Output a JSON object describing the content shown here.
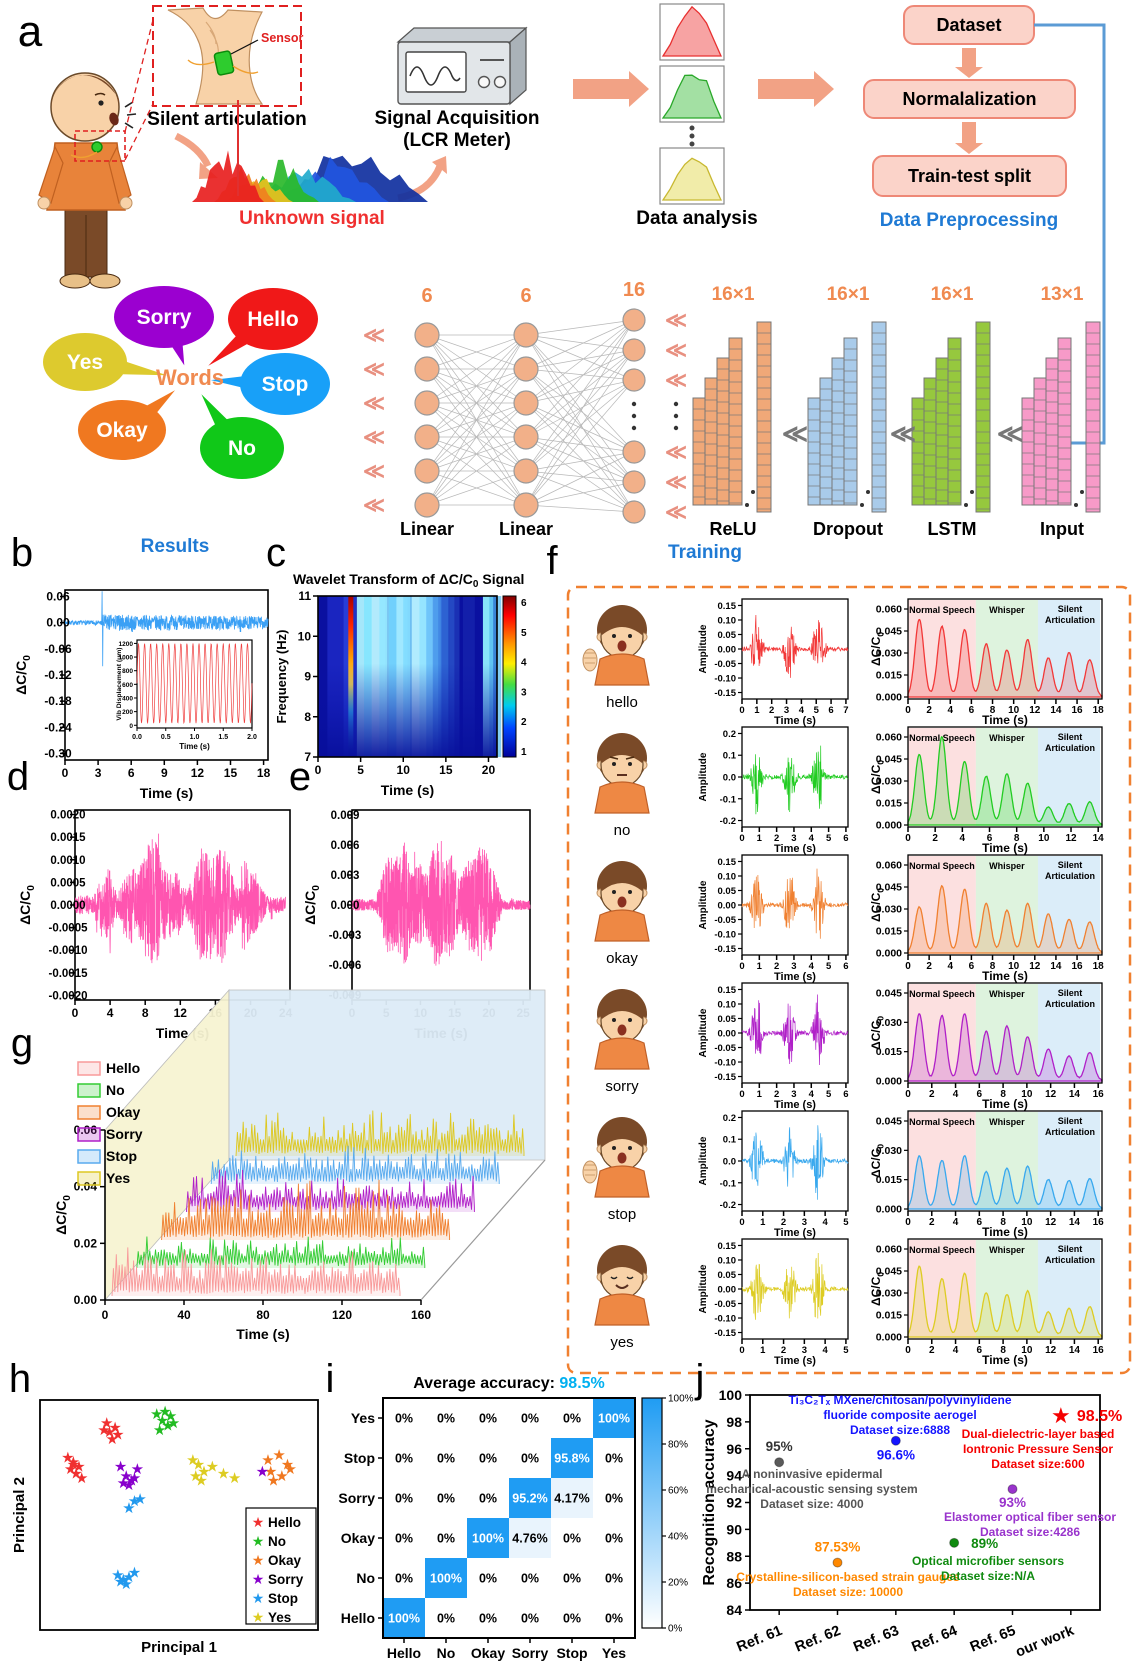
{
  "panel_labels": {
    "a": "a",
    "b": "b",
    "c": "c",
    "d": "d",
    "e": "e",
    "f": "f",
    "g": "g",
    "h": "h",
    "i": "i",
    "j": "j"
  },
  "panel_a": {
    "silent_articulation": "Silent articulation",
    "sensor_label": "Sensor",
    "unknown_signal": "Unknown signal",
    "signal_acquisition": [
      "Signal Acquisition",
      "(LCR Meter)"
    ],
    "data_analysis": "Data analysis",
    "flow_boxes": [
      "Dataset",
      "Normalalization",
      "Train-test split"
    ],
    "data_preprocessing": "Data Preprocessing",
    "results_label": "Results",
    "training_label": "Training",
    "words_center": "Words",
    "word_bubbles": [
      {
        "label": "Sorry",
        "color": "#9b00d0"
      },
      {
        "label": "Hello",
        "color": "#f01818"
      },
      {
        "label": "Yes",
        "color": "#ddca2e"
      },
      {
        "label": "Stop",
        "color": "#18a0f8"
      },
      {
        "label": "Okay",
        "color": "#f07820"
      },
      {
        "label": "No",
        "color": "#10c818"
      }
    ],
    "network": {
      "layer_size_labels": [
        "6",
        "6",
        "16"
      ],
      "stack_size_labels": [
        "16×1",
        "16×1",
        "16×1",
        "13×1"
      ],
      "block_labels": [
        "Linear",
        "Linear",
        "ReLU",
        "Dropout",
        "LSTM",
        "Input"
      ],
      "stack_colors": [
        "#f0a878",
        "#a9cbea",
        "#96c83e",
        "#f79ac8"
      ]
    }
  },
  "chart_data": {
    "b": {
      "type": "line",
      "color": "#3aa0f5",
      "ylabel": "ΔC/C0",
      "yticks": [
        "0.06",
        "0.00",
        "-0.06",
        "-0.12",
        "-0.18",
        "-0.24",
        "-0.30"
      ],
      "xlabel": "Time (s)",
      "xticks": [
        0,
        3,
        6,
        9,
        12,
        15,
        18
      ],
      "description": "noisy capacitance signal near zero with burst after t=3.3s",
      "inset": {
        "ylabel": "Vib Displacement (μm)",
        "yticks": [
          1200,
          1000,
          800,
          600,
          400,
          200,
          0
        ],
        "xlabel": "Time (s)",
        "xticks": [
          "0.0",
          "0.5",
          "1.0",
          "1.5",
          "2.0"
        ],
        "color": "#f04040",
        "cycles": 19
      }
    },
    "c": {
      "type": "heatmap",
      "title_prefix": "Wavelet Transform of ΔC/C",
      "title_sub": "0",
      "title_suffix": " Signal",
      "ylabel": "Frequency (Hz)",
      "yticks": [
        11,
        10,
        9,
        8,
        7
      ],
      "xlabel": "Time (s)",
      "xticks": [
        0,
        5,
        10,
        15,
        20
      ],
      "colorbar_ticks": [
        6,
        5,
        4,
        3,
        2,
        1
      ],
      "description": "dark blue background, hot red streak near t=4s, bright cyan streaks t=4-13 and t=19.5, energy concentrated 8.5-11 Hz"
    },
    "d": {
      "type": "line",
      "color": "#ff55b0",
      "ylabel": "ΔC/C0",
      "yticks": [
        "0.0020",
        "0.0015",
        "0.0010",
        "0.0005",
        "0.0000",
        "-0.0005",
        "-0.0010",
        "-0.0015",
        "-0.0020"
      ],
      "xlabel": "Time (s)",
      "xticks": [
        0,
        4,
        8,
        12,
        16,
        20,
        24
      ]
    },
    "e": {
      "type": "line",
      "color": "#ff55b0",
      "ylabel": "ΔC/C0",
      "yticks": [
        "0.009",
        "0.006",
        "0.003",
        "0.000",
        "-0.003",
        "-0.006",
        "-0.009"
      ],
      "xlabel": "Time (s)",
      "xticks": [
        0,
        5,
        10,
        15,
        20,
        25
      ]
    },
    "f_region_labels": [
      "Normal Speech",
      "Whisper",
      "Silent Articulation"
    ],
    "f_region_colors": [
      "#fbd8d8",
      "#d6f0d6",
      "#d2e8f8"
    ],
    "f_rows": [
      {
        "word": "hello",
        "color": "#f23838",
        "amp": {
          "ylabel": "Amplitude",
          "ymax": 0.15,
          "yticks": [
            "0.15",
            "0.10",
            "0.05",
            "0.00",
            "-0.05",
            "-0.10",
            "-0.15"
          ],
          "xlabel": "Time (s)",
          "xticks": [
            0,
            1,
            2,
            3,
            4,
            5,
            6,
            7
          ]
        },
        "cc": {
          "ylabel": "ΔC/C0",
          "ymax": 0.06,
          "yticks": [
            "0.060",
            "0.045",
            "0.030",
            "0.015",
            "0.000"
          ],
          "xlabel": "Time (s)",
          "xticks": [
            0,
            2,
            4,
            6,
            8,
            10,
            12,
            14,
            16,
            18
          ],
          "peak_heights": [
            [
              0.88,
              0.8,
              0.76
            ],
            [
              0.6,
              0.53,
              0.65
            ],
            [
              0.44,
              0.5,
              0.42
            ]
          ]
        }
      },
      {
        "word": "no",
        "color": "#22cc22",
        "amp": {
          "ylabel": "Amplitude",
          "ymax": 0.2,
          "yticks": [
            "0.2",
            "0.1",
            "0.0",
            "-0.1",
            "-0.2"
          ],
          "xlabel": "Time (s)",
          "xticks": [
            0,
            1,
            2,
            3,
            4,
            5,
            6
          ]
        },
        "cc": {
          "ylabel": "ΔC/C0",
          "ymax": 0.06,
          "yticks": [
            "0.060",
            "0.045",
            "0.030",
            "0.015",
            "0.000"
          ],
          "xlabel": "Time (s)",
          "xticks": [
            0,
            2,
            4,
            6,
            8,
            10,
            12,
            14
          ],
          "peak_heights": [
            [
              0.8,
              1.0,
              0.72
            ],
            [
              0.55,
              0.58,
              0.47
            ],
            [
              0.2,
              0.24,
              0.26
            ]
          ]
        }
      },
      {
        "word": "okay",
        "color": "#f08030",
        "amp": {
          "ylabel": "Amplitude",
          "ymax": 0.15,
          "yticks": [
            "0.15",
            "0.10",
            "0.05",
            "0.00",
            "-0.05",
            "-0.10",
            "-0.15"
          ],
          "xlabel": "Time (s)",
          "xticks": [
            0,
            1,
            2,
            3,
            4,
            5,
            6
          ]
        },
        "cc": {
          "ylabel": "ΔC/C0",
          "ymax": 0.06,
          "yticks": [
            "0.060",
            "0.045",
            "0.030",
            "0.015",
            "0.000"
          ],
          "xlabel": "Time (s)",
          "xticks": [
            0,
            2,
            4,
            6,
            8,
            10,
            12,
            14,
            16,
            18
          ],
          "peak_heights": [
            [
              0.52,
              0.76,
              0.72
            ],
            [
              0.56,
              0.48,
              0.56
            ],
            [
              0.44,
              0.38,
              0.35
            ]
          ]
        }
      },
      {
        "word": "sorry",
        "color": "#b020c8",
        "amp": {
          "ylabel": "Amplitude",
          "ymax": 0.15,
          "yticks": [
            "0.15",
            "0.10",
            "0.05",
            "0.00",
            "-0.05",
            "-0.10",
            "-0.15"
          ],
          "xlabel": "Time (s)",
          "xticks": [
            0,
            1,
            2,
            3,
            4,
            5,
            6
          ]
        },
        "cc": {
          "ylabel": "ΔC/C0",
          "ymax": 0.045,
          "yticks": [
            "0.045",
            "0.030",
            "0.015",
            "0.000"
          ],
          "xlabel": "Time (s)",
          "xticks": [
            0,
            2,
            4,
            6,
            8,
            10,
            12,
            14,
            16
          ],
          "peak_heights": [
            [
              0.76,
              0.74,
              0.76
            ],
            [
              0.56,
              0.62,
              0.5
            ],
            [
              0.36,
              0.28,
              0.32
            ]
          ]
        }
      },
      {
        "word": "stop",
        "color": "#38a8ee",
        "amp": {
          "ylabel": "Amplitude",
          "ymax": 0.2,
          "yticks": [
            "0.2",
            "0.1",
            "0.0",
            "-0.1",
            "-0.2"
          ],
          "xlabel": "Time (s)",
          "xticks": [
            0,
            1,
            2,
            3,
            4,
            5
          ]
        },
        "cc": {
          "ylabel": "ΔC/C0",
          "ymax": 0.045,
          "yticks": [
            "0.045",
            "0.030",
            "0.015",
            "0.000"
          ],
          "xlabel": "Time (s)",
          "xticks": [
            0,
            2,
            4,
            6,
            8,
            10,
            12,
            14,
            16
          ],
          "peak_heights": [
            [
              0.6,
              0.55,
              0.6
            ],
            [
              0.42,
              0.46,
              0.48
            ],
            [
              0.33,
              0.32,
              0.34
            ]
          ]
        }
      },
      {
        "word": "yes",
        "color": "#ddcc22",
        "amp": {
          "ylabel": "Amplitude",
          "ymax": 0.15,
          "yticks": [
            "0.15",
            "0.10",
            "0.05",
            "0.00",
            "-0.05",
            "-0.10",
            "-0.15"
          ],
          "xlabel": "Time (s)",
          "xticks": [
            0,
            1,
            2,
            3,
            4,
            5
          ]
        },
        "cc": {
          "ylabel": "ΔC/C0",
          "ymax": 0.06,
          "yticks": [
            "0.060",
            "0.045",
            "0.030",
            "0.015",
            "0.000"
          ],
          "xlabel": "Time (s)",
          "xticks": [
            0,
            2,
            4,
            6,
            8,
            10,
            12,
            14,
            16
          ],
          "peak_heights": [
            [
              0.8,
              0.66,
              0.72
            ],
            [
              0.5,
              0.48,
              0.52
            ],
            [
              0.28,
              0.32,
              0.34
            ]
          ]
        }
      }
    ],
    "g": {
      "type": "line",
      "ylabel": "ΔC/C0",
      "yticks": [
        "0.06",
        "0.04",
        "0.02",
        "0.00"
      ],
      "xlabel": "Time (s)",
      "xticks": [
        0,
        40,
        80,
        120,
        160
      ],
      "series": [
        {
          "name": "Hello",
          "color": "#f89a9a"
        },
        {
          "name": "No",
          "color": "#33cc33"
        },
        {
          "name": "Okay",
          "color": "#f08030"
        },
        {
          "name": "Sorry",
          "color": "#b020c8"
        },
        {
          "name": "Stop",
          "color": "#58aaee"
        },
        {
          "name": "Yes",
          "color": "#ddc822"
        }
      ]
    },
    "h": {
      "type": "scatter",
      "xlabel": "Principal 1",
      "ylabel": "Principal 2",
      "classes": [
        {
          "name": "Hello",
          "color": "#f03030",
          "points": [
            [
              0.24,
              0.1
            ],
            [
              0.27,
              0.12
            ],
            [
              0.25,
              0.14
            ],
            [
              0.28,
              0.15
            ],
            [
              0.26,
              0.17
            ],
            [
              0.23,
              0.13
            ],
            [
              0.1,
              0.25
            ],
            [
              0.12,
              0.27
            ],
            [
              0.14,
              0.29
            ],
            [
              0.11,
              0.3
            ],
            [
              0.13,
              0.32
            ],
            [
              0.12,
              0.28
            ],
            [
              0.15,
              0.34
            ]
          ]
        },
        {
          "name": "No",
          "color": "#22bb22",
          "points": [
            [
              0.42,
              0.06
            ],
            [
              0.45,
              0.05
            ],
            [
              0.47,
              0.07
            ],
            [
              0.44,
              0.09
            ],
            [
              0.46,
              0.11
            ],
            [
              0.43,
              0.13
            ],
            [
              0.48,
              0.1
            ]
          ]
        },
        {
          "name": "Okay",
          "color": "#f07820",
          "points": [
            [
              0.82,
              0.26
            ],
            [
              0.86,
              0.24
            ],
            [
              0.89,
              0.28
            ],
            [
              0.83,
              0.31
            ],
            [
              0.87,
              0.33
            ],
            [
              0.9,
              0.3
            ],
            [
              0.84,
              0.35
            ]
          ]
        },
        {
          "name": "Sorry",
          "color": "#8800cc",
          "points": [
            [
              0.29,
              0.29
            ],
            [
              0.35,
              0.3
            ],
            [
              0.31,
              0.33
            ],
            [
              0.33,
              0.35
            ],
            [
              0.34,
              0.34
            ],
            [
              0.3,
              0.36
            ],
            [
              0.32,
              0.37
            ],
            [
              0.8,
              0.31
            ]
          ]
        },
        {
          "name": "Stop",
          "color": "#2299ee",
          "points": [
            [
              0.34,
              0.44
            ],
            [
              0.32,
              0.47
            ],
            [
              0.36,
              0.43
            ],
            [
              0.28,
              0.76
            ],
            [
              0.3,
              0.78
            ],
            [
              0.32,
              0.77
            ],
            [
              0.34,
              0.75
            ],
            [
              0.31,
              0.8
            ],
            [
              0.29,
              0.79
            ]
          ]
        },
        {
          "name": "Yes",
          "color": "#ddcc22",
          "points": [
            [
              0.55,
              0.26
            ],
            [
              0.57,
              0.28
            ],
            [
              0.59,
              0.31
            ],
            [
              0.56,
              0.33
            ],
            [
              0.62,
              0.29
            ],
            [
              0.66,
              0.32
            ],
            [
              0.7,
              0.34
            ],
            [
              0.58,
              0.35
            ]
          ]
        }
      ]
    },
    "i": {
      "type": "heatmap",
      "title": "Average accuracy:",
      "title_value": "98.5%",
      "row_labels": [
        "Yes",
        "Stop",
        "Sorry",
        "Okay",
        "No",
        "Hello"
      ],
      "col_labels": [
        "Hello",
        "No",
        "Okay",
        "Sorry",
        "Stop",
        "Yes"
      ],
      "values": [
        [
          "0%",
          "0%",
          "0%",
          "0%",
          "0%",
          "100%"
        ],
        [
          "0%",
          "0%",
          "0%",
          "0%",
          "95.8%",
          "0%"
        ],
        [
          "0%",
          "0%",
          "0%",
          "95.2%",
          "4.17%",
          "0%"
        ],
        [
          "0%",
          "0%",
          "100%",
          "4.76%",
          "0%",
          "0%"
        ],
        [
          "0%",
          "100%",
          "0%",
          "0%",
          "0%",
          "0%"
        ],
        [
          "100%",
          "0%",
          "0%",
          "0%",
          "0%",
          "0%"
        ]
      ],
      "colorbar_ticks": [
        "100%",
        "80%",
        "60%",
        "40%",
        "20%",
        "0%"
      ]
    },
    "j": {
      "type": "scatter",
      "ylabel": "Recognition accuracy",
      "ylim": [
        84,
        100
      ],
      "yticks": [
        100,
        98,
        96,
        94,
        92,
        90,
        88,
        86,
        84
      ],
      "categories": [
        "Ref. 61",
        "Ref. 62",
        "Ref. 63",
        "Ref. 64",
        "Ref. 65",
        "our work"
      ],
      "points": [
        {
          "category": "Ref. 61",
          "value": 95,
          "value_label": "95%",
          "color": "#5a5a5a",
          "marker": "circle",
          "lines": [
            "A noninvasive epidermal",
            "mechanical-acoustic sensing system",
            "Dataset size: 4000"
          ]
        },
        {
          "category": "Ref. 62",
          "value": 87.53,
          "value_label": "87.53%",
          "color": "#ff8800",
          "marker": "circle",
          "lines": [
            "Crystalline-silicon-based strain gauges",
            "Dataset size: 10000"
          ]
        },
        {
          "category": "Ref. 63",
          "value": 96.6,
          "value_label": "96.6%",
          "color": "#1414ff",
          "marker": "circle",
          "lines": [
            "Ti₃C₂Tₓ MXene/chitosan/polyvinylidene",
            "fluoride composite aerogel",
            "Dataset size:6888"
          ]
        },
        {
          "category": "Ref. 64",
          "value": 89,
          "value_label": "89%",
          "color": "#0f8a0f",
          "marker": "circle",
          "lines": [
            "Optical microfiber sensors",
            "Dataset size:N/A"
          ]
        },
        {
          "category": "Ref. 65",
          "value": 93,
          "value_label": "93%",
          "color": "#9933cc",
          "marker": "circle",
          "lines": [
            "Elastomer optical fiber sensor",
            "Dataset size:4286"
          ]
        },
        {
          "category": "our work",
          "value": 98.5,
          "value_label": "98.5%",
          "color": "#f50000",
          "marker": "star",
          "lines": [
            "Dual-dielectric-layer based",
            "Iontronic Pressure Sensor",
            "Dataset size:600"
          ]
        }
      ]
    }
  }
}
